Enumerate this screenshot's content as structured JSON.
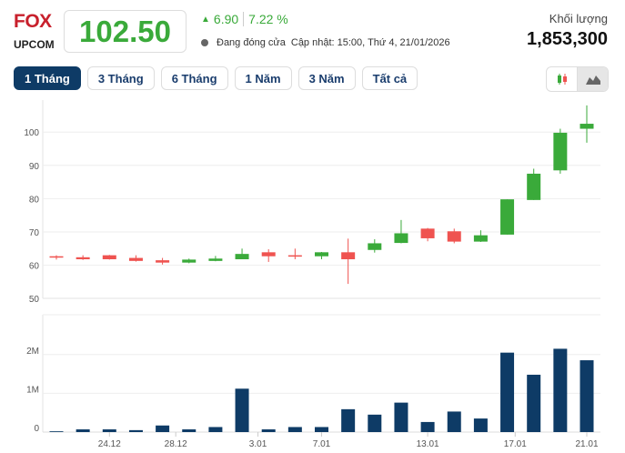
{
  "header": {
    "symbol": "FOX",
    "exchange": "UPCOM",
    "price": "102.50",
    "change": "6.90",
    "change_pct": "7.22 %",
    "status": "Đang đóng cửa",
    "updated": "Cập nhật: 15:00, Thứ 4, 21/01/2026",
    "volume_label": "Khối lượng",
    "volume": "1,853,300"
  },
  "tabs": [
    {
      "label": "1 Tháng",
      "active": true
    },
    {
      "label": "3 Tháng"
    },
    {
      "label": "6 Tháng"
    },
    {
      "label": "1 Năm"
    },
    {
      "label": "3 Năm"
    },
    {
      "label": "Tất cả"
    }
  ],
  "chart_types": [
    {
      "icon": "candlestick-icon"
    },
    {
      "icon": "area-chart-icon",
      "active": true
    }
  ],
  "colors": {
    "up": "#3aaa3a",
    "down": "#ef5350",
    "volume": "#0e3b66",
    "symbol": "#c8202c"
  },
  "chart_data": [
    {
      "type": "candlestick",
      "ylim": [
        50,
        108
      ],
      "yticks": [
        50,
        60,
        70,
        80,
        90,
        100
      ],
      "grid": true,
      "ohlc": [
        [
          62.7,
          63,
          61.7,
          62.3
        ],
        [
          62.4,
          63,
          61.6,
          61.8
        ],
        [
          63,
          63.1,
          61.7,
          61.8
        ],
        [
          62.2,
          63,
          61.1,
          61.3
        ],
        [
          61.5,
          62.2,
          60.2,
          60.8
        ],
        [
          60.8,
          62,
          60.6,
          61.7
        ],
        [
          61.3,
          62.8,
          61.2,
          62
        ],
        [
          61.8,
          65,
          61.8,
          63.4
        ],
        [
          63.9,
          64.8,
          61,
          62.7
        ],
        [
          63,
          65,
          61.8,
          62.7
        ],
        [
          62.7,
          64,
          61.8,
          63.9
        ],
        [
          63.9,
          68,
          54.4,
          61.8
        ],
        [
          64.6,
          67.8,
          63.8,
          66.6
        ],
        [
          66.7,
          73.6,
          66.6,
          69.6
        ],
        [
          71,
          71.2,
          67.2,
          68.1
        ],
        [
          70.2,
          71,
          66.6,
          67.1
        ],
        [
          67.1,
          70.5,
          67,
          69
        ],
        [
          69.2,
          79.8,
          69.2,
          79.8
        ],
        [
          79.6,
          89,
          79.6,
          87.5
        ],
        [
          88.5,
          101,
          87.5,
          99.8
        ],
        [
          101,
          108,
          96.8,
          102.5
        ]
      ]
    },
    {
      "type": "bar",
      "ylim": [
        0,
        3000000
      ],
      "yticks": [
        {
          "v": 0,
          "label": "0"
        },
        {
          "v": 1000000,
          "label": "1M"
        },
        {
          "v": 2000000,
          "label": "2M"
        }
      ],
      "grid": true,
      "values": [
        20000,
        70000,
        70000,
        50000,
        170000,
        70000,
        130000,
        1120000,
        70000,
        130000,
        130000,
        590000,
        450000,
        760000,
        260000,
        530000,
        350000,
        2050000,
        1480000,
        2150000,
        1853300
      ],
      "xticks": [
        "24.12",
        "28.12",
        "3.01",
        "7.01",
        "13.01",
        "17.01",
        "21.01"
      ]
    }
  ]
}
